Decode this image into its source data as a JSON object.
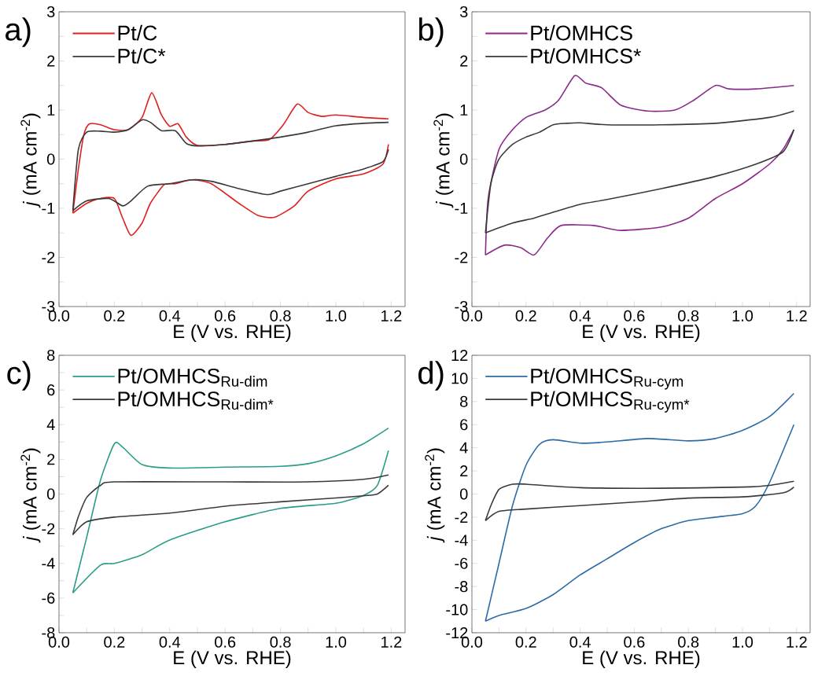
{
  "chart_data": [
    {
      "type": "line",
      "title": "a)",
      "xlabel": "E (V vs. RHE)",
      "ylabel": "*j* (mA cm$^{-2}$)",
      "legend": "top left",
      "xlim": [
        0,
        1.25
      ],
      "ylim": [
        -3,
        3
      ],
      "xticks": [
        {
          "value": 0,
          "label": "0.0"
        },
        {
          "value": 0.1,
          "label": null
        },
        {
          "value": 0.2,
          "label": "0.2"
        },
        {
          "value": 0.3,
          "label": null
        },
        {
          "value": 0.4,
          "label": "0.4"
        },
        {
          "value": 0.5,
          "label": null
        },
        {
          "value": 0.6,
          "label": "0.6"
        },
        {
          "value": 0.7,
          "label": null
        },
        {
          "value": 0.8,
          "label": "0.8"
        },
        {
          "value": 0.9,
          "label": null
        },
        {
          "value": 1.0,
          "label": "1.0"
        },
        {
          "value": 1.1,
          "label": null
        },
        {
          "value": 1.2,
          "label": "1.2"
        }
      ],
      "yticks": [
        -3,
        {
          "value": -2.5,
          "label": null
        },
        -2,
        {
          "value": -1.5,
          "label": null
        },
        -1,
        {
          "value": -0.5,
          "label": null
        },
        0,
        {
          "value": 0.5,
          "label": null
        },
        1,
        {
          "value": 1.5,
          "label": null
        },
        2,
        {
          "value": 2.5,
          "label": null
        },
        3
      ],
      "series": [
        {
          "name": "Pt/C",
          "color": "#e02020",
          "x": [
            0.05,
            0.07,
            0.09,
            0.11,
            0.15,
            0.2,
            0.25,
            0.3,
            0.335,
            0.37,
            0.4,
            0.43,
            0.46,
            0.5,
            0.6,
            0.7,
            0.76,
            0.81,
            0.86,
            0.9,
            0.95,
            1.0,
            1.1,
            1.19
          ],
          "values": [
            -1.1,
            -0.2,
            0.5,
            0.72,
            0.7,
            0.6,
            0.6,
            0.85,
            1.35,
            0.9,
            0.67,
            0.72,
            0.45,
            0.28,
            0.3,
            0.37,
            0.4,
            0.7,
            1.12,
            0.95,
            0.87,
            0.9,
            0.85,
            0.82
          ]
        },
        {
          "color": "#e02020",
          "x": [
            1.19,
            1.17,
            1.1,
            1.0,
            0.9,
            0.85,
            0.78,
            0.72,
            0.65,
            0.55,
            0.48,
            0.42,
            0.38,
            0.33,
            0.3,
            0.26,
            0.23,
            0.2,
            0.15,
            0.1,
            0.05
          ],
          "values": [
            0.3,
            -0.1,
            -0.3,
            -0.4,
            -0.65,
            -0.95,
            -1.18,
            -1.15,
            -0.9,
            -0.5,
            -0.42,
            -0.5,
            -0.52,
            -0.9,
            -1.3,
            -1.55,
            -1.2,
            -0.8,
            -0.8,
            -0.9,
            -1.1
          ]
        },
        {
          "name": "Pt/C*",
          "color": "#3a3a3a",
          "x": [
            0.05,
            0.07,
            0.1,
            0.15,
            0.2,
            0.25,
            0.3,
            0.33,
            0.37,
            0.42,
            0.46,
            0.5,
            0.6,
            0.7,
            0.8,
            0.9,
            1.0,
            1.1,
            1.19
          ],
          "values": [
            -1.05,
            0.2,
            0.55,
            0.57,
            0.55,
            0.6,
            0.8,
            0.75,
            0.58,
            0.58,
            0.32,
            0.27,
            0.3,
            0.37,
            0.45,
            0.55,
            0.68,
            0.73,
            0.75
          ]
        },
        {
          "color": "#3a3a3a",
          "x": [
            1.19,
            1.17,
            1.1,
            1.0,
            0.9,
            0.8,
            0.75,
            0.65,
            0.55,
            0.48,
            0.4,
            0.32,
            0.26,
            0.23,
            0.18,
            0.1,
            0.05
          ],
          "values": [
            0.2,
            -0.05,
            -0.2,
            -0.35,
            -0.5,
            -0.65,
            -0.72,
            -0.6,
            -0.45,
            -0.42,
            -0.5,
            -0.55,
            -0.85,
            -0.95,
            -0.8,
            -0.85,
            -1.05
          ]
        }
      ]
    },
    {
      "type": "line",
      "title": "b)",
      "xlabel": "E (V vs. RHE)",
      "ylabel": "*j* (mA cm$^{-2}$)",
      "legend": "top left",
      "xlim": [
        0,
        1.25
      ],
      "ylim": [
        -3,
        3
      ],
      "xticks": [
        {
          "value": 0,
          "label": "0.0"
        },
        {
          "value": 0.1,
          "label": null
        },
        {
          "value": 0.2,
          "label": "0.2"
        },
        {
          "value": 0.3,
          "label": null
        },
        {
          "value": 0.4,
          "label": "0.4"
        },
        {
          "value": 0.5,
          "label": null
        },
        {
          "value": 0.6,
          "label": "0.6"
        },
        {
          "value": 0.7,
          "label": null
        },
        {
          "value": 0.8,
          "label": "0.8"
        },
        {
          "value": 0.9,
          "label": null
        },
        {
          "value": 1.0,
          "label": "1.0"
        },
        {
          "value": 1.1,
          "label": null
        },
        {
          "value": 1.2,
          "label": "1.2"
        }
      ],
      "yticks": [
        -3,
        {
          "value": -2.5,
          "label": null
        },
        -2,
        {
          "value": -1.5,
          "label": null
        },
        -1,
        {
          "value": -0.5,
          "label": null
        },
        0,
        {
          "value": 0.5,
          "label": null
        },
        1,
        {
          "value": 1.5,
          "label": null
        },
        2,
        {
          "value": 2.5,
          "label": null
        },
        3
      ],
      "series": [
        {
          "name": "Pt/OMHCS",
          "color": "#8b2a8b",
          "x": [
            0.05,
            0.06,
            0.1,
            0.15,
            0.2,
            0.27,
            0.32,
            0.38,
            0.42,
            0.48,
            0.55,
            0.65,
            0.75,
            0.82,
            0.9,
            0.95,
            1.05,
            1.19
          ],
          "values": [
            -1.95,
            -0.8,
            0.2,
            0.6,
            0.85,
            1.0,
            1.2,
            1.7,
            1.55,
            1.45,
            1.1,
            0.98,
            1.0,
            1.2,
            1.5,
            1.43,
            1.43,
            1.5
          ]
        },
        {
          "color": "#8b2a8b",
          "x": [
            1.19,
            1.15,
            1.1,
            1.0,
            0.9,
            0.8,
            0.7,
            0.55,
            0.45,
            0.33,
            0.28,
            0.23,
            0.18,
            0.12,
            0.05
          ],
          "values": [
            0.6,
            0.2,
            -0.1,
            -0.5,
            -0.8,
            -1.2,
            -1.38,
            -1.45,
            -1.35,
            -1.35,
            -1.6,
            -1.95,
            -1.8,
            -1.75,
            -1.95
          ]
        },
        {
          "name": "Pt/OMHCS*",
          "color": "#3a3a3a",
          "x": [
            0.05,
            0.07,
            0.1,
            0.15,
            0.2,
            0.25,
            0.3,
            0.35,
            0.4,
            0.5,
            0.7,
            0.9,
            1.1,
            1.19
          ],
          "values": [
            -1.5,
            -0.5,
            0.0,
            0.3,
            0.45,
            0.55,
            0.7,
            0.73,
            0.74,
            0.7,
            0.7,
            0.73,
            0.85,
            0.98
          ]
        },
        {
          "color": "#3a3a3a",
          "x": [
            1.19,
            1.15,
            1.05,
            0.9,
            0.7,
            0.5,
            0.4,
            0.3,
            0.23,
            0.15,
            0.05
          ],
          "values": [
            0.6,
            0.15,
            -0.1,
            -0.35,
            -0.6,
            -0.82,
            -0.92,
            -1.08,
            -1.2,
            -1.3,
            -1.5
          ]
        }
      ]
    },
    {
      "type": "line",
      "title": "c)",
      "xlabel": "E (V vs. RHE)",
      "ylabel": "*j* (mA cm$^{-2}$)",
      "legend": "top left",
      "xlim": [
        0,
        1.25
      ],
      "ylim": [
        -8,
        8
      ],
      "xticks": [
        {
          "value": 0,
          "label": "0.0"
        },
        {
          "value": 0.1,
          "label": null
        },
        {
          "value": 0.2,
          "label": "0.2"
        },
        {
          "value": 0.3,
          "label": null
        },
        {
          "value": 0.4,
          "label": "0.4"
        },
        {
          "value": 0.5,
          "label": null
        },
        {
          "value": 0.6,
          "label": "0.6"
        },
        {
          "value": 0.7,
          "label": null
        },
        {
          "value": 0.8,
          "label": "0.8"
        },
        {
          "value": 0.9,
          "label": null
        },
        {
          "value": 1.0,
          "label": "1.0"
        },
        {
          "value": 1.1,
          "label": null
        },
        {
          "value": 1.2,
          "label": "1.2"
        }
      ],
      "yticks": [
        -8,
        {
          "value": -7,
          "label": null
        },
        -6,
        {
          "value": -5,
          "label": null
        },
        -4,
        {
          "value": -3,
          "label": null
        },
        -2,
        {
          "value": -1,
          "label": null
        },
        0,
        {
          "value": 1,
          "label": null
        },
        2,
        {
          "value": 3,
          "label": null
        },
        4,
        {
          "value": 5,
          "label": null
        },
        6,
        {
          "value": 7,
          "label": null
        },
        8
      ],
      "series": [
        {
          "name": "Pt/OMHCS$_{Ru-dim}$",
          "color": "#2a9d8a",
          "x": [
            0.05,
            0.1,
            0.15,
            0.2,
            0.23,
            0.3,
            0.4,
            0.6,
            0.8,
            0.9,
            1.0,
            1.1,
            1.19
          ],
          "values": [
            -5.7,
            -2.5,
            0.8,
            2.9,
            2.7,
            1.7,
            1.5,
            1.55,
            1.6,
            1.75,
            2.2,
            2.9,
            3.8
          ]
        },
        {
          "color": "#2a9d8a",
          "x": [
            1.19,
            1.15,
            1.1,
            1.0,
            0.8,
            0.6,
            0.4,
            0.3,
            0.2,
            0.15,
            0.05
          ],
          "values": [
            2.5,
            0.5,
            -0.08,
            -0.53,
            -0.83,
            -1.6,
            -2.65,
            -3.5,
            -4.0,
            -4.1,
            -5.7
          ]
        },
        {
          "name": "Pt/OMHCS$_{Ru-dim*}$",
          "color": "#3a3a3a",
          "x": [
            0.05,
            0.07,
            0.1,
            0.15,
            0.2,
            0.6,
            0.9,
            1.1,
            1.19
          ],
          "values": [
            -2.35,
            -1.3,
            -0.2,
            0.5,
            0.7,
            0.7,
            0.7,
            0.85,
            1.1
          ]
        },
        {
          "color": "#3a3a3a",
          "x": [
            1.19,
            1.15,
            1.1,
            1.0,
            0.8,
            0.6,
            0.4,
            0.2,
            0.1,
            0.05
          ],
          "values": [
            0.5,
            0.0,
            -0.1,
            -0.23,
            -0.45,
            -0.7,
            -1.1,
            -1.33,
            -1.6,
            -2.35
          ]
        }
      ]
    },
    {
      "type": "line",
      "title": "d)",
      "xlabel": "E (V vs. RHE)",
      "ylabel": "*j* (mA cm$^{-2}$)",
      "legend": "top left",
      "xlim": [
        0,
        1.25
      ],
      "ylim": [
        -12,
        12
      ],
      "xticks": [
        {
          "value": 0,
          "label": "0.0"
        },
        {
          "value": 0.1,
          "label": null
        },
        {
          "value": 0.2,
          "label": "0.2"
        },
        {
          "value": 0.3,
          "label": null
        },
        {
          "value": 0.4,
          "label": "0.4"
        },
        {
          "value": 0.5,
          "label": null
        },
        {
          "value": 0.6,
          "label": "0.6"
        },
        {
          "value": 0.7,
          "label": null
        },
        {
          "value": 0.8,
          "label": "0.8"
        },
        {
          "value": 0.9,
          "label": null
        },
        {
          "value": 1.0,
          "label": "1.0"
        },
        {
          "value": 1.1,
          "label": null
        },
        {
          "value": 1.2,
          "label": "1.2"
        }
      ],
      "yticks": [
        -12,
        -10,
        -8,
        -6,
        -4,
        -2,
        0,
        2,
        4,
        6,
        8,
        10,
        12
      ],
      "series": [
        {
          "name": "Pt/OMHCS$_{Ru-cym}$",
          "color": "#2b6ca8",
          "x": [
            0.05,
            0.1,
            0.15,
            0.2,
            0.25,
            0.3,
            0.4,
            0.5,
            0.65,
            0.8,
            0.9,
            1.0,
            1.1,
            1.19
          ],
          "values": [
            -11,
            -6,
            -1,
            2.5,
            4.3,
            4.7,
            4.4,
            4.5,
            4.8,
            4.6,
            4.8,
            5.5,
            6.7,
            8.7
          ]
        },
        {
          "color": "#2b6ca8",
          "x": [
            1.19,
            1.1,
            1.05,
            1.0,
            0.9,
            0.8,
            0.7,
            0.6,
            0.5,
            0.4,
            0.3,
            0.2,
            0.1,
            0.05
          ],
          "values": [
            6,
            1.0,
            -1.0,
            -1.7,
            -2.0,
            -2.3,
            -3.0,
            -4.2,
            -5.6,
            -7.0,
            -8.7,
            -9.9,
            -10.5,
            -11
          ]
        },
        {
          "name": "Pt/OMHCS$_{Ru-cym*}$",
          "color": "#3a3a3a",
          "x": [
            0.05,
            0.07,
            0.1,
            0.15,
            0.2,
            0.4,
            0.7,
            1.0,
            1.1,
            1.19
          ],
          "values": [
            -2.3,
            -1.0,
            0.4,
            0.85,
            0.85,
            0.55,
            0.5,
            0.6,
            0.75,
            1.1
          ]
        },
        {
          "color": "#3a3a3a",
          "x": [
            1.19,
            1.15,
            1.0,
            0.8,
            0.6,
            0.4,
            0.2,
            0.1,
            0.05
          ],
          "values": [
            0.6,
            0.1,
            -0.25,
            -0.35,
            -0.7,
            -1.0,
            -1.3,
            -1.5,
            -2.3
          ]
        }
      ]
    }
  ]
}
